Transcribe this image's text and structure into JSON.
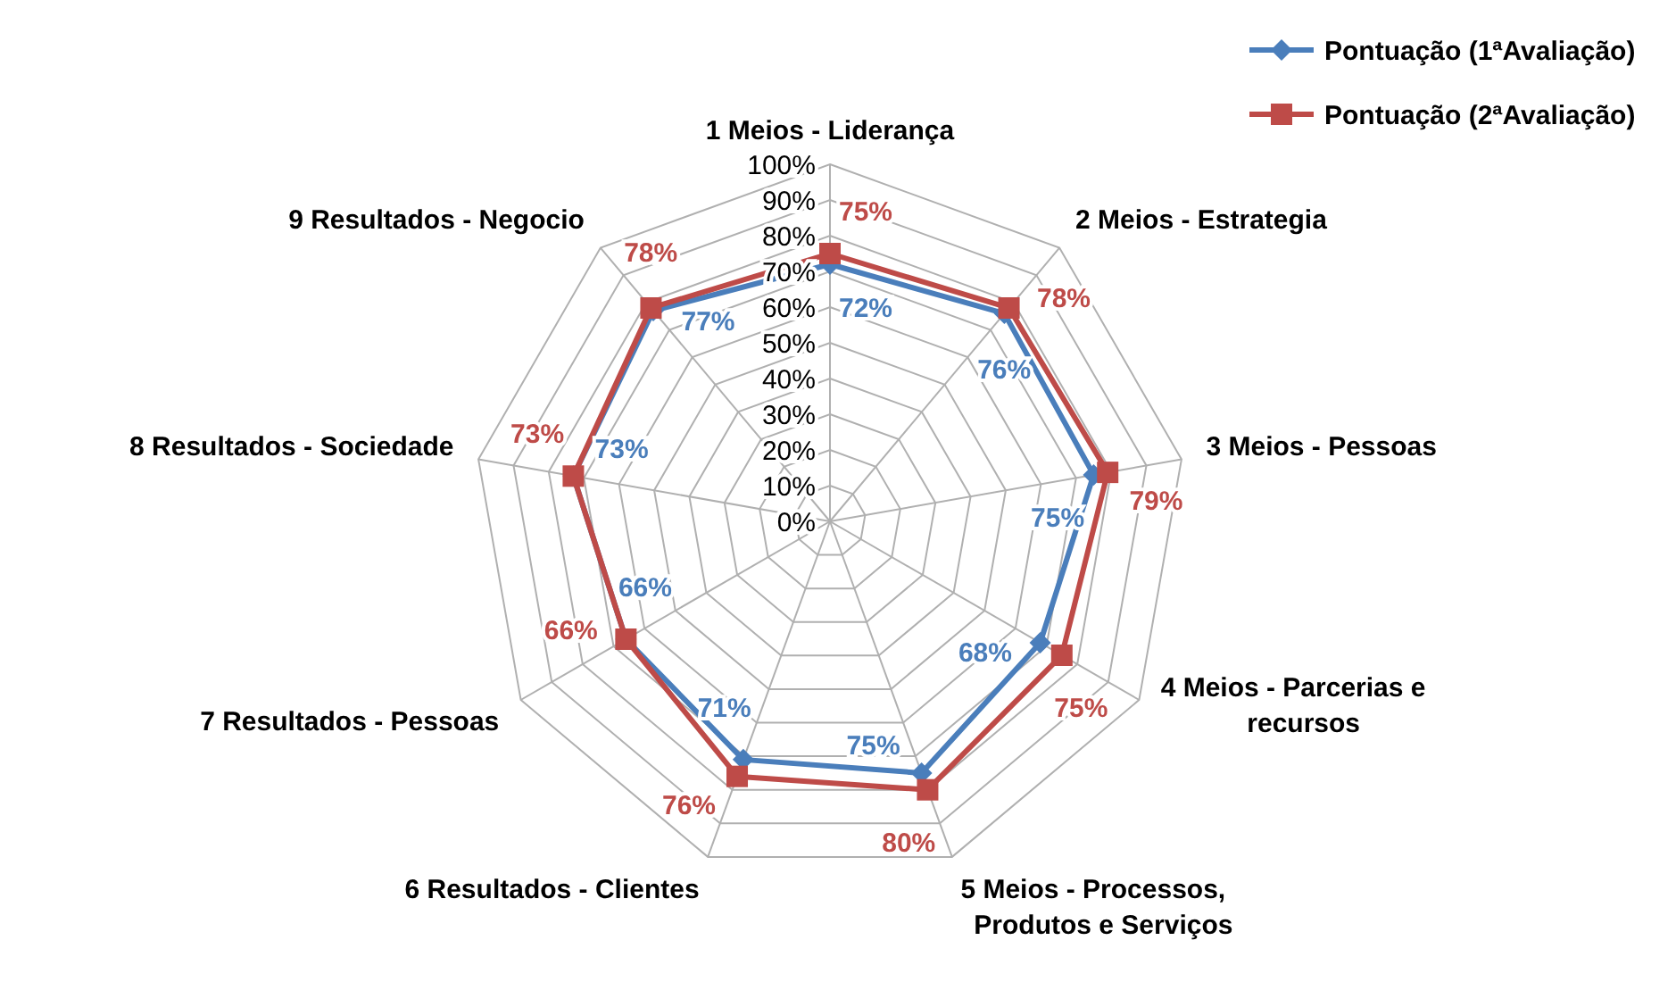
{
  "chart_data": {
    "type": "radar",
    "categories": [
      "1 Meios - Liderança",
      "2 Meios - Estrategia",
      "3 Meios - Pessoas",
      "4 Meios - Parcerias e recursos",
      "5 Meios - Processos, Produtos e Serviços",
      "6 Resultados - Clientes",
      "7 Resultados - Pessoas",
      "8 Resultados - Sociedade",
      "9 Resultados - Negocio"
    ],
    "series": [
      {
        "name": "Pontuação (1ªAvaliação)",
        "color": "#4a7ebb",
        "marker": "diamond",
        "values": [
          72,
          76,
          75,
          68,
          75,
          71,
          66,
          73,
          77
        ],
        "value_labels": [
          "72%",
          "76%",
          "75%",
          "68%",
          "75%",
          "71%",
          "66%",
          "73%",
          "77%"
        ]
      },
      {
        "name": "Pontuação (2ªAvaliação)",
        "color": "#be4b48",
        "marker": "square",
        "values": [
          75,
          78,
          79,
          75,
          80,
          76,
          66,
          73,
          78
        ],
        "value_labels": [
          "75%",
          "78%",
          "79%",
          "75%",
          "80%",
          "76%",
          "66%",
          "73%",
          "78%"
        ]
      }
    ],
    "ylim": [
      0,
      100
    ],
    "yticks": [
      {
        "value": 0,
        "label": "0%"
      },
      {
        "value": 10,
        "label": "10%"
      },
      {
        "value": 20,
        "label": "20%"
      },
      {
        "value": 30,
        "label": "30%"
      },
      {
        "value": 40,
        "label": "40%"
      },
      {
        "value": 50,
        "label": "50%"
      },
      {
        "value": 60,
        "label": "60%"
      },
      {
        "value": 70,
        "label": "70%"
      },
      {
        "value": 80,
        "label": "80%"
      },
      {
        "value": 90,
        "label": "90%"
      },
      {
        "value": 100,
        "label": "100%"
      }
    ],
    "grid": true,
    "legend": "top right"
  }
}
